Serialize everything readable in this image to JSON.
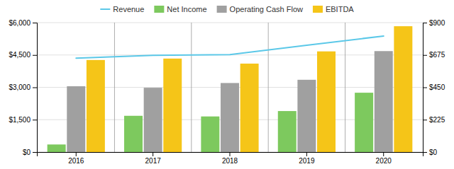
{
  "chart_data": {
    "type": "bar",
    "categories": [
      "2016",
      "2017",
      "2018",
      "2019",
      "2020"
    ],
    "series": [
      {
        "name": "Revenue",
        "type": "line",
        "color": "#5bc8e8",
        "values": [
          4350,
          4480,
          4520,
          4950,
          5380
        ]
      },
      {
        "name": "Net Income",
        "type": "bar",
        "color": "#7dc95e",
        "values": [
          350,
          1680,
          1650,
          1900,
          2750
        ]
      },
      {
        "name": "Operating Cash Flow",
        "type": "bar",
        "color": "#a0a0a0",
        "values": [
          3050,
          2980,
          3200,
          3350,
          4680
        ]
      },
      {
        "name": "EBITDA",
        "type": "bar",
        "color": "#f5c518",
        "axis": "y2",
        "values": [
          640,
          650,
          615,
          700,
          875
        ]
      }
    ],
    "ylim": [
      0,
      6000
    ],
    "yticks": [
      {
        "value": 0,
        "label": "$0"
      },
      {
        "value": 1500,
        "label": "$1,500"
      },
      {
        "value": 3000,
        "label": "$3,000"
      },
      {
        "value": 4500,
        "label": "$4,500"
      },
      {
        "value": 6000,
        "label": "$6,000"
      }
    ],
    "y2lim": [
      0,
      900
    ],
    "y2ticks": [
      {
        "value": 0,
        "label": "$0"
      },
      {
        "value": 225,
        "label": "$225"
      },
      {
        "value": 450,
        "label": "$450"
      },
      {
        "value": 675,
        "label": "$675"
      },
      {
        "value": 900,
        "label": "$900"
      }
    ],
    "grid": true,
    "legend": "top"
  }
}
